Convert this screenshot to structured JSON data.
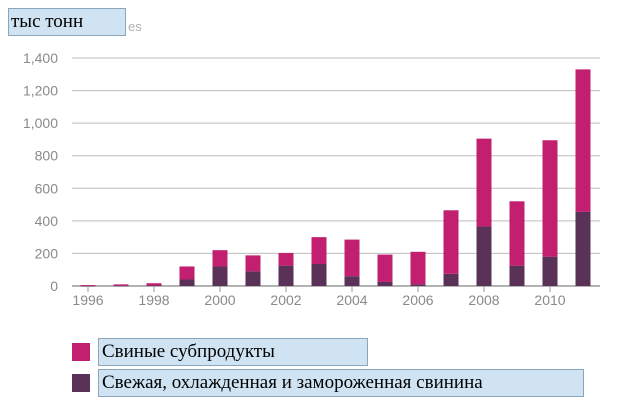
{
  "unit_label": "тыс тонн",
  "unit_ghost": "es",
  "colors": {
    "offal": "#c21f71",
    "pork": "#5a3157",
    "grid": "#bdbdbd",
    "axis": "#9a9a9a"
  },
  "legend": [
    {
      "label": "Свиные субпродукты",
      "color": "#c21f71"
    },
    {
      "label": "Свежая, охлажденная и замороженная свинина",
      "color": "#5a3157"
    }
  ],
  "chart_data": {
    "type": "bar",
    "stacked": true,
    "categories": [
      "1996",
      "1997",
      "1998",
      "1999",
      "2000",
      "2001",
      "2002",
      "2003",
      "2004",
      "2005",
      "2006",
      "2007",
      "2008",
      "2009",
      "2010",
      "2011"
    ],
    "x_tick_labels": [
      "1996",
      "1998",
      "2000",
      "2002",
      "2004",
      "2006",
      "2008",
      "2010"
    ],
    "series": [
      {
        "name": "Свежая, охлажденная и замороженная свинина",
        "values": [
          1,
          2,
          3,
          40,
          120,
          90,
          125,
          135,
          60,
          25,
          10,
          75,
          365,
          125,
          180,
          455
        ]
      },
      {
        "name": "Свиные субпродукты",
        "values": [
          5,
          8,
          14,
          80,
          100,
          98,
          78,
          165,
          225,
          168,
          200,
          390,
          540,
          395,
          715,
          875
        ]
      }
    ],
    "ylim": [
      0,
      1400
    ],
    "y_ticks": [
      0,
      200,
      400,
      600,
      800,
      1000,
      1200,
      1400
    ],
    "y_tick_labels": [
      "0",
      "200",
      "400",
      "600",
      "800",
      "1,000",
      "1,200",
      "1,400"
    ],
    "grid": true,
    "legend_position": "bottom-left"
  }
}
